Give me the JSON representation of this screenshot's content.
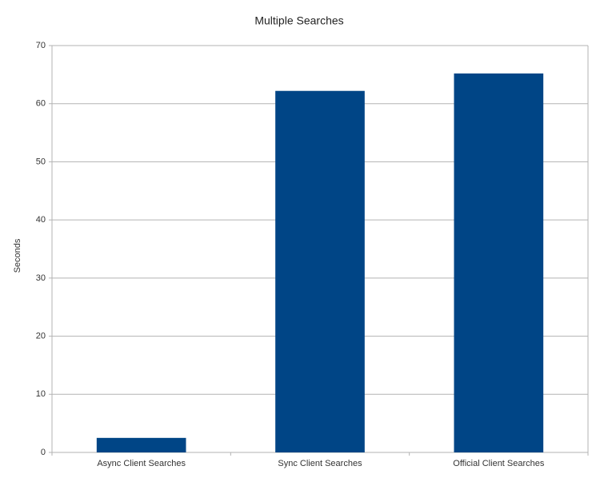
{
  "chart_data": {
    "type": "bar",
    "title": "Multiple Searches",
    "y_label": "Seconds",
    "categories": [
      "Async Client Searches",
      "Sync Client Searches",
      "Official Client Searches"
    ],
    "values": [
      2.5,
      62.2,
      65.2
    ],
    "color": "#004586",
    "ylim": [
      0,
      70
    ],
    "yticks": [
      0,
      10,
      20,
      30,
      40,
      50,
      60,
      70
    ],
    "grid": true
  }
}
